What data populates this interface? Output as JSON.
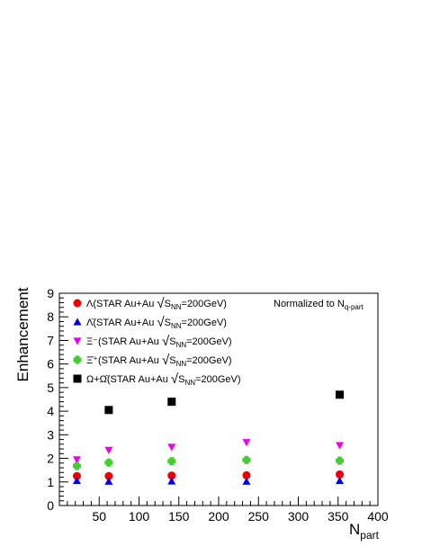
{
  "chart_data": {
    "type": "scatter",
    "title": "",
    "xlabel": "N",
    "xlabel_sub": "part",
    "ylabel": "Enhancement",
    "xlim": [
      0,
      400
    ],
    "ylim": [
      0,
      9
    ],
    "x_ticks": [
      50,
      100,
      150,
      200,
      250,
      300,
      350,
      400
    ],
    "y_ticks": [
      0,
      1,
      2,
      3,
      4,
      5,
      6,
      7,
      8,
      9
    ],
    "grid": false,
    "legend_position": "top-left",
    "annotation": {
      "text": "Normalized to N",
      "sub": "q-part"
    },
    "series": [
      {
        "name": "Λ(STAR Au+Au √S_NN=200GeV)",
        "label_lead": "Λ(STAR Au+Au ",
        "label_tail": "=200GeV)",
        "marker": "circle",
        "color": "#ee0000",
        "points": [
          [
            22,
            1.25
          ],
          [
            62,
            1.25
          ],
          [
            141,
            1.27
          ],
          [
            235,
            1.28
          ],
          [
            352,
            1.32
          ]
        ]
      },
      {
        "name": "Λ̄(STAR Au+Au √S_NN=200GeV)",
        "label_lead": "Λ̄(STAR Au+Au ",
        "label_tail": "=200GeV)",
        "marker": "triangle-up",
        "color": "#0000ee",
        "points": [
          [
            22,
            1.05
          ],
          [
            62,
            1.02
          ],
          [
            141,
            1.03
          ],
          [
            235,
            1.02
          ],
          [
            352,
            1.05
          ]
        ]
      },
      {
        "name": "Ξ⁻(STAR Au+Au √S_NN=200GeV)",
        "label_lead": "Ξ⁻(STAR Au+Au ",
        "label_tail": "=200GeV)",
        "marker": "triangle-down",
        "color": "#ee00ee",
        "points": [
          [
            22,
            1.95
          ],
          [
            62,
            2.35
          ],
          [
            141,
            2.48
          ],
          [
            235,
            2.68
          ],
          [
            352,
            2.55
          ]
        ]
      },
      {
        "name": "Ξ̄⁺(STAR Au+Au √S_NN=200GeV)",
        "label_lead": "Ξ̄⁺(STAR Au+Au ",
        "label_tail": "=200GeV)",
        "marker": "cross",
        "color": "#44cc33",
        "points": [
          [
            22,
            1.68
          ],
          [
            62,
            1.82
          ],
          [
            141,
            1.88
          ],
          [
            235,
            1.93
          ],
          [
            352,
            1.9
          ]
        ]
      },
      {
        "name": "Ω+Ω̄(STAR Au+Au √S_NN=200GeV)",
        "label_lead": "Ω+Ω̄(STAR Au+Au ",
        "label_tail": "=200GeV)",
        "marker": "square",
        "color": "#000000",
        "points": [
          [
            62,
            4.05
          ],
          [
            141,
            4.4
          ],
          [
            352,
            4.7
          ]
        ]
      }
    ],
    "sqrt_label": "S",
    "sqrt_sub": "NN"
  }
}
